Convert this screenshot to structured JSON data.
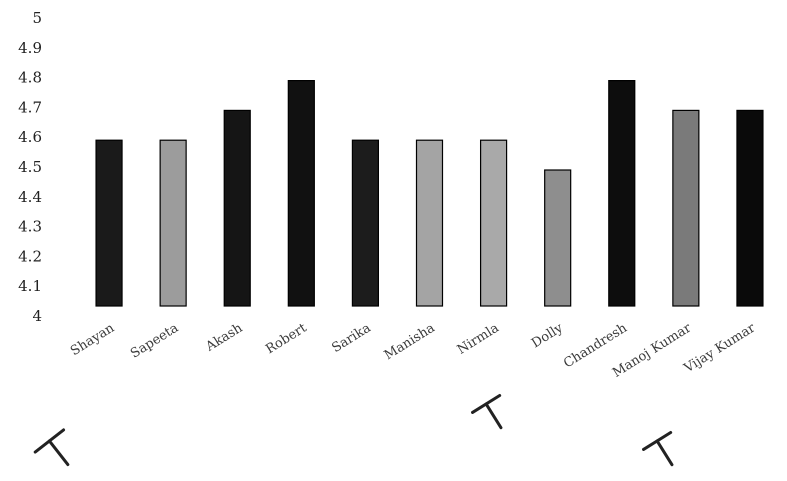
{
  "chart_data": {
    "type": "bar",
    "title": "",
    "xlabel": "",
    "ylabel": "",
    "ylim": [
      4.0,
      5.0
    ],
    "y_ticks": [
      "4",
      "4.1",
      "4.2",
      "4.3",
      "4.4",
      "4.5",
      "4.6",
      "4.7",
      "4.8",
      "4.9",
      "5"
    ],
    "grid": false,
    "legend": "none",
    "categories": [
      "Shayan",
      "Sapeeta",
      "Akash",
      "Robert",
      "Sarika",
      "Manisha",
      "Nirmla",
      "Dolly",
      "Chandresh",
      "Manoj Kumar",
      "Vijay Kumar"
    ],
    "values": [
      4.6,
      4.6,
      4.7,
      4.8,
      4.6,
      4.6,
      4.6,
      4.5,
      4.8,
      4.7,
      4.7
    ],
    "bar_colors": [
      "#1a1a1a",
      "#9c9c9c",
      "#151515",
      "#111111",
      "#1c1c1c",
      "#a4a4a4",
      "#a9a9a9",
      "#8e8e8e",
      "#0d0d0d",
      "#7a7a7a",
      "#0a0a0a"
    ],
    "label_colors": [
      "#3a3a3a",
      "#3a3a3a",
      "#3a3a3a",
      "#3a3a3a",
      "#3a3a3a",
      "#4a4a4a",
      "#8a8a8a",
      "#6a6a6a",
      "#b0b0b0",
      "#8a8a8a",
      "#b0b0b0"
    ]
  }
}
